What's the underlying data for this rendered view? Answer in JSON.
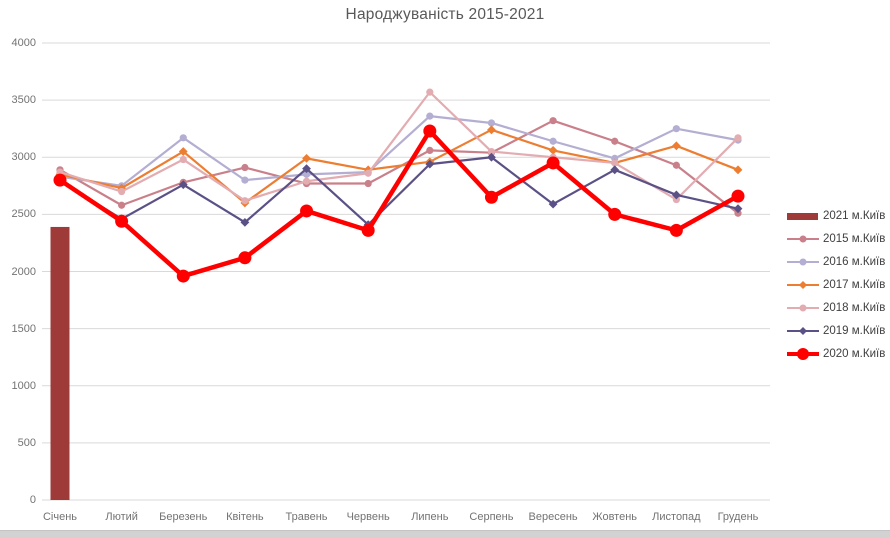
{
  "title_text": "Народжуваність 2015-2021",
  "chart_data": {
    "type": "line",
    "title": "Народжуваність 2015-2021",
    "xlabel": "",
    "ylabel": "",
    "ylim": [
      0,
      4000
    ],
    "y_ticks": [
      0,
      500,
      1000,
      1500,
      2000,
      2500,
      3000,
      3500,
      4000
    ],
    "grid": true,
    "legend_position": "right",
    "categories": [
      "Січень",
      "Лютий",
      "Березень",
      "Квітень",
      "Травень",
      "Червень",
      "Липень",
      "Серпень",
      "Вересень",
      "Жовтень",
      "Листопад",
      "Грудень"
    ],
    "series": [
      {
        "name": "2021 м.Київ",
        "type": "bar",
        "color": "#9e3b38",
        "values": [
          2390,
          null,
          null,
          null,
          null,
          null,
          null,
          null,
          null,
          null,
          null,
          null
        ]
      },
      {
        "name": "2015 м.Київ",
        "type": "line",
        "color": "#c9808a",
        "marker": "circle",
        "values": [
          2890,
          2580,
          2780,
          2910,
          2770,
          2770,
          3060,
          3040,
          3320,
          3140,
          2930,
          2510
        ]
      },
      {
        "name": "2016 м.Київ",
        "type": "line",
        "color": "#b3aed2",
        "marker": "circle",
        "values": [
          2830,
          2750,
          3170,
          2800,
          2850,
          2870,
          3360,
          3300,
          3140,
          2990,
          3250,
          3150
        ]
      },
      {
        "name": "2017 м.Київ",
        "type": "line",
        "color": "#ed7d31",
        "marker": "diamond",
        "values": [
          2850,
          2730,
          3050,
          2600,
          2990,
          2890,
          2960,
          3240,
          3060,
          2950,
          3100,
          2890
        ]
      },
      {
        "name": "2018 м.Київ",
        "type": "line",
        "color": "#e2acb1",
        "marker": "circle",
        "values": [
          2870,
          2700,
          2980,
          2620,
          2790,
          2860,
          3570,
          3050,
          3000,
          2950,
          2630,
          3170
        ]
      },
      {
        "name": "2019 м.Київ",
        "type": "line",
        "color": "#5b5186",
        "marker": "diamond",
        "values": [
          2790,
          2460,
          2760,
          2430,
          2900,
          2410,
          2940,
          3000,
          2590,
          2890,
          2670,
          2550
        ]
      },
      {
        "name": "2020 м.Київ",
        "type": "line",
        "color": "#ff0000",
        "marker": "circle",
        "emphasis": true,
        "values": [
          2800,
          2440,
          1960,
          2120,
          2530,
          2360,
          3230,
          2650,
          2950,
          2500,
          2360,
          2660
        ]
      }
    ]
  },
  "colors": {
    "gridline": "#d9d9d9",
    "axis_text": "#737373",
    "title_text": "#595959",
    "legend_text": "#404040",
    "background": "#ffffff",
    "bottom_edge": "#d2d2d2"
  }
}
